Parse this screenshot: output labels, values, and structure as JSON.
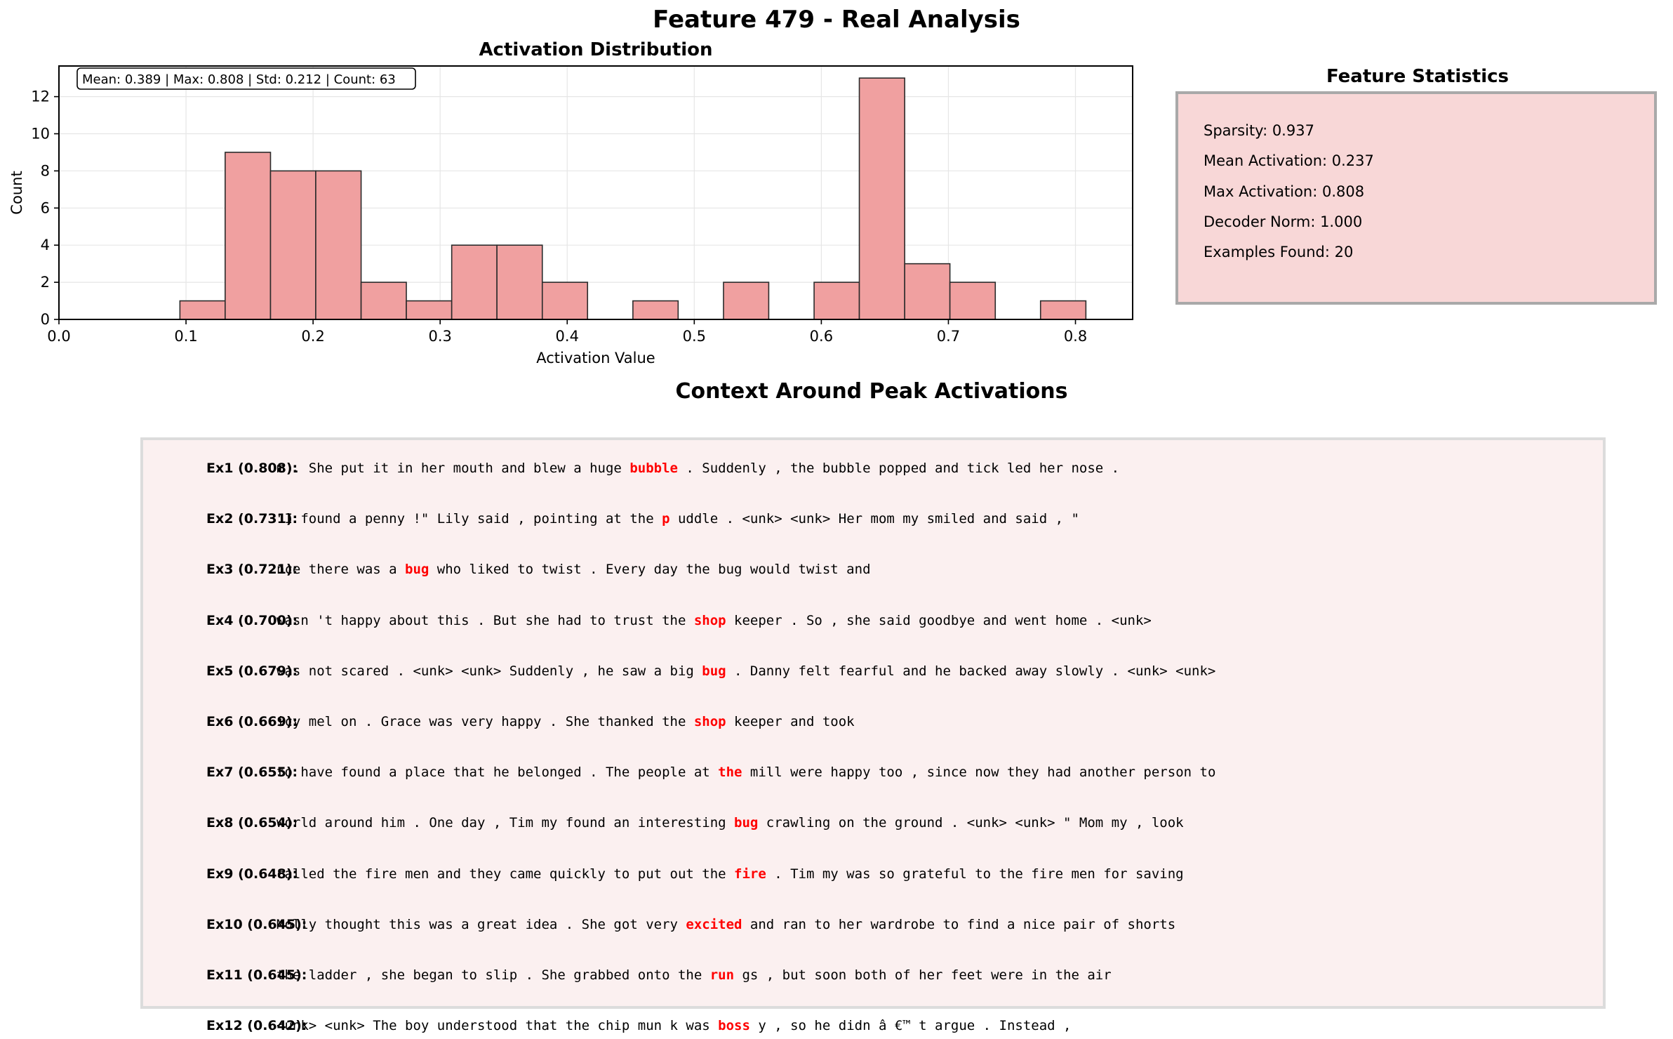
{
  "figure": {
    "suptitle": "Feature 479 - Real Analysis"
  },
  "chart_data": {
    "type": "bar",
    "title": "Activation Distribution",
    "xlabel": "Activation Value",
    "ylabel": "Count",
    "annotation": "Mean: 0.389 | Max: 0.808 | Std: 0.212 | Count: 63",
    "xlim": [
      0.0,
      0.845
    ],
    "ylim": [
      0,
      13.65
    ],
    "xticks": [
      "0.0",
      "0.1",
      "0.2",
      "0.3",
      "0.4",
      "0.5",
      "0.6",
      "0.7",
      "0.8"
    ],
    "yticks": [
      "0",
      "2",
      "4",
      "6",
      "8",
      "10",
      "12"
    ],
    "grid": true,
    "bar_color": "#f0a0a0",
    "bin_edges": [
      0.0952,
      0.1308,
      0.1665,
      0.2021,
      0.2378,
      0.2734,
      0.3091,
      0.3447,
      0.3804,
      0.416,
      0.4517,
      0.4873,
      0.523,
      0.5586,
      0.5943,
      0.6299,
      0.6656,
      0.7012,
      0.7369,
      0.7725,
      0.8082
    ],
    "counts": [
      1,
      9,
      8,
      8,
      2,
      1,
      4,
      4,
      2,
      0,
      1,
      0,
      2,
      0,
      2,
      13,
      3,
      2,
      0,
      1
    ]
  },
  "stats": {
    "title": "Feature Statistics",
    "lines": [
      "Sparsity: 0.937",
      "Mean Activation: 0.237",
      "Max Activation: 0.808",
      "Decoder Norm: 1.000",
      "Examples Found: 20"
    ]
  },
  "context": {
    "title": "Context Around Peak Activations",
    "highlight_color": "#ff0000",
    "examples": [
      {
        "label": "Ex1 (0.808):",
        "pre": "m . She put it in her mouth and blew a huge ",
        "token": "bubble",
        "post": " . Suddenly , the bubble popped and tick led her nose ."
      },
      {
        "label": "Ex2 (0.731):",
        "pre": "\"I found a penny !\" Lily said , pointing at the ",
        "token": "p",
        "post": " uddle . <unk> <unk> Her mom my smiled and said , \""
      },
      {
        "label": "Ex3 (0.721):",
        "pre": "nce there was a ",
        "token": "bug",
        "post": " who liked to twist . Every day the bug would twist and"
      },
      {
        "label": "Ex4 (0.700):",
        "pre": "wasn 't happy about this . But she had to trust the ",
        "token": "shop",
        "post": " keeper . So , she said goodbye and went home . <unk>"
      },
      {
        "label": "Ex5 (0.679):",
        "pre": "was not scared . <unk> <unk> Suddenly , he saw a big ",
        "token": "bug",
        "post": " . Danny felt fearful and he backed away slowly . <unk> <unk>"
      },
      {
        "label": "Ex6 (0.669):",
        "pre": "icy mel on . Grace was very happy . She thanked the ",
        "token": "shop",
        "post": " keeper and took"
      },
      {
        "label": "Ex7 (0.655):",
        "pre": "to have found a place that he belonged . The people at ",
        "token": "the",
        "post": " mill were happy too , since now they had another person to"
      },
      {
        "label": "Ex8 (0.654):",
        "pre": "world around him . One day , Tim my found an interesting ",
        "token": "bug",
        "post": " crawling on the ground . <unk> <unk> \" Mom my , look"
      },
      {
        "label": "Ex9 (0.648):",
        "pre": "called the fire men and they came quickly to put out the ",
        "token": "fire",
        "post": " . Tim my was so grateful to the fire men for saving"
      },
      {
        "label": "Ex10 (0.645):",
        "pre": "Molly thought this was a great idea . She got very ",
        "token": "excited",
        "post": " and ran to her wardrobe to find a nice pair of shorts"
      },
      {
        "label": "Ex11 (0.645):",
        "pre": "the ladder , she began to slip . She grabbed onto the ",
        "token": "run",
        "post": " gs , but soon both of her feet were in the air"
      },
      {
        "label": "Ex12 (0.642):",
        "pre": "<unk> <unk> The boy understood that the chip mun k was ",
        "token": "boss",
        "post": " y , so he didn â €™ t argue . Instead ,"
      }
    ]
  }
}
